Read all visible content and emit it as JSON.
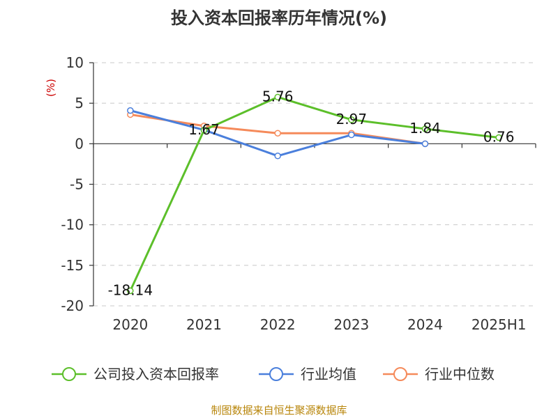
{
  "chart_data": {
    "type": "line",
    "title": "投入资本回报率历年情况(%)",
    "ylabel": "(%)",
    "xlabel": "",
    "categories": [
      "2020",
      "2021",
      "2022",
      "2023",
      "2024",
      "2025H1"
    ],
    "ylim": [
      -20,
      10
    ],
    "yticks": [
      10,
      5,
      0,
      -5,
      -10,
      -15,
      -20
    ],
    "grid": true,
    "legend_position": "bottom",
    "series": [
      {
        "name": "公司投入资本回报率",
        "color": "#5cbf2a",
        "values": [
          -18.14,
          1.67,
          5.76,
          2.97,
          1.84,
          0.76
        ],
        "labels": [
          "-18.14",
          "1.67",
          "5.76",
          "2.97",
          "1.84",
          "0.76"
        ]
      },
      {
        "name": "行业均值",
        "color": "#4a7fdc",
        "values": [
          4.1,
          1.7,
          -1.5,
          1.1,
          0.0,
          null
        ]
      },
      {
        "name": "行业中位数",
        "color": "#f58a5a",
        "values": [
          3.6,
          2.2,
          1.3,
          1.3,
          0.0,
          null
        ]
      }
    ]
  },
  "source": "制图数据来自恒生聚源数据库"
}
